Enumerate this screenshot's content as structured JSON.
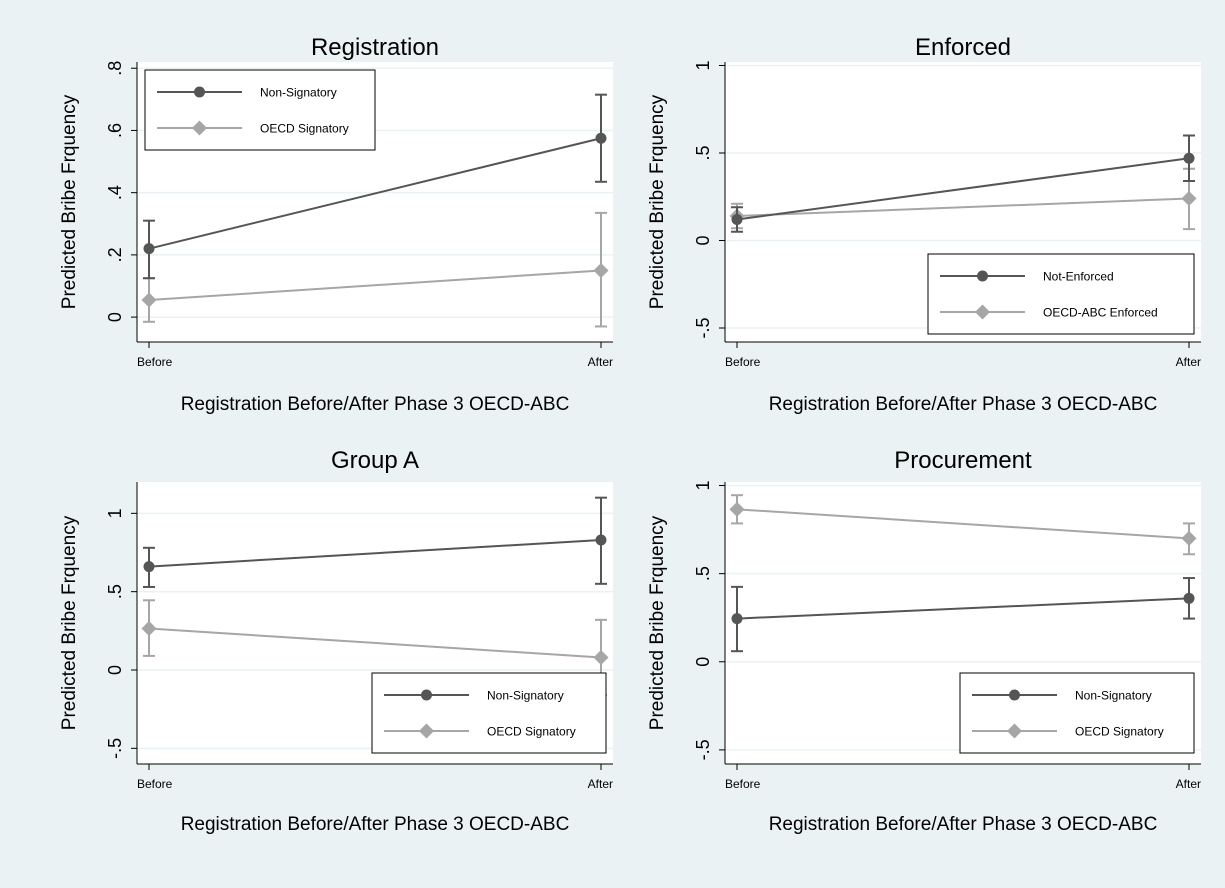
{
  "figure": {
    "background_color": "#eaf2f3",
    "plot_background_color": "#ffffff",
    "grid_color": "#eaf2f3"
  },
  "chart_data": [
    {
      "type": "line",
      "title": "Registration",
      "xlabel": "Registration Before/After Phase 3 OECD-ABC",
      "ylabel": "Predicted Bribe Frquency",
      "categories": [
        "Before",
        "After"
      ],
      "ylim": [
        -0.08,
        0.82
      ],
      "yticks": [
        0,
        0.2,
        0.4,
        0.6,
        0.8
      ],
      "yticklabels": [
        "0",
        ".2",
        ".4",
        ".6",
        ".8"
      ],
      "grid": true,
      "legend_position": "top-left",
      "series": [
        {
          "name": "Non-Signatory",
          "marker": "circle",
          "color": "#555555",
          "values": [
            0.22,
            0.575
          ],
          "ci_low": [
            0.125,
            0.435
          ],
          "ci_high": [
            0.31,
            0.715
          ]
        },
        {
          "name": "OECD Signatory",
          "marker": "diamond",
          "color": "#a6a6a6",
          "values": [
            0.055,
            0.15
          ],
          "ci_low": [
            -0.015,
            -0.03
          ],
          "ci_high": [
            0.125,
            0.335
          ]
        }
      ]
    },
    {
      "type": "line",
      "title": "Enforced",
      "xlabel": "Registration Before/After Phase 3 OECD-ABC",
      "ylabel": "Predicted Bribe Frquency",
      "categories": [
        "Before",
        "After"
      ],
      "ylim": [
        -0.58,
        1.02
      ],
      "yticks": [
        -0.5,
        0,
        0.5,
        1
      ],
      "yticklabels": [
        "-.5",
        "0",
        ".5",
        "1"
      ],
      "grid": true,
      "legend_position": "bottom-right",
      "series": [
        {
          "name": "Not-Enforced",
          "marker": "circle",
          "color": "#555555",
          "values": [
            0.12,
            0.47
          ],
          "ci_low": [
            0.05,
            0.34
          ],
          "ci_high": [
            0.19,
            0.6
          ]
        },
        {
          "name": "OECD-ABC Enforced",
          "marker": "diamond",
          "color": "#a6a6a6",
          "values": [
            0.14,
            0.24
          ],
          "ci_low": [
            0.07,
            0.065
          ],
          "ci_high": [
            0.21,
            0.41
          ]
        }
      ]
    },
    {
      "type": "line",
      "title": "Group A",
      "xlabel": "Registration Before/After Phase 3 OECD-ABC",
      "ylabel": "Predicted Bribe Frquency",
      "categories": [
        "Before",
        "After"
      ],
      "ylim": [
        -0.6,
        1.2
      ],
      "yticks": [
        -0.5,
        0,
        0.5,
        1
      ],
      "yticklabels": [
        "-.5",
        "0",
        ".5",
        "1"
      ],
      "grid": true,
      "legend_position": "bottom-right",
      "series": [
        {
          "name": "Non-Signatory",
          "marker": "circle",
          "color": "#555555",
          "values": [
            0.66,
            0.83
          ],
          "ci_low": [
            0.53,
            0.55
          ],
          "ci_high": [
            0.78,
            1.1
          ]
        },
        {
          "name": "OECD Signatory",
          "marker": "diamond",
          "color": "#a6a6a6",
          "values": [
            0.265,
            0.08
          ],
          "ci_low": [
            0.09,
            -0.16
          ],
          "ci_high": [
            0.445,
            0.32
          ]
        }
      ]
    },
    {
      "type": "line",
      "title": "Procurement",
      "xlabel": "Registration Before/After Phase 3 OECD-ABC",
      "ylabel": "Predicted Bribe Frquency",
      "categories": [
        "Before",
        "After"
      ],
      "ylim": [
        -0.58,
        1.02
      ],
      "yticks": [
        -0.5,
        0,
        0.5,
        1
      ],
      "yticklabels": [
        "-.5",
        "0",
        ".5",
        "1"
      ],
      "grid": true,
      "legend_position": "bottom-right",
      "series": [
        {
          "name": "Non-Signatory",
          "marker": "circle",
          "color": "#555555",
          "values": [
            0.245,
            0.36
          ],
          "ci_low": [
            0.06,
            0.245
          ],
          "ci_high": [
            0.425,
            0.475
          ]
        },
        {
          "name": "OECD Signatory",
          "marker": "diamond",
          "color": "#a6a6a6",
          "values": [
            0.865,
            0.7
          ],
          "ci_low": [
            0.785,
            0.61
          ],
          "ci_high": [
            0.945,
            0.785
          ]
        }
      ]
    }
  ]
}
